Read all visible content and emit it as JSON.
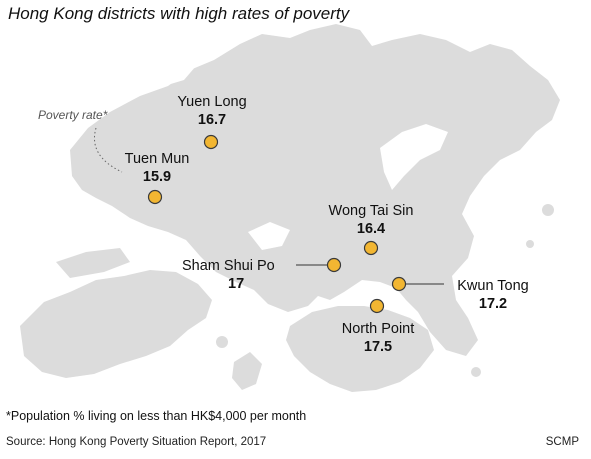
{
  "title": "Hong Kong districts with high rates of poverty",
  "legend_note": "Poverty rate*",
  "districts": [
    {
      "name": "Yuen Long",
      "rate": "16.7"
    },
    {
      "name": "Tuen Mun",
      "rate": "15.9"
    },
    {
      "name": "Wong Tai Sin",
      "rate": "16.4"
    },
    {
      "name": "Sham Shui Po",
      "rate": "17"
    },
    {
      "name": "Kwun Tong",
      "rate": "17.2"
    },
    {
      "name": "North Point",
      "rate": "17.5"
    }
  ],
  "footnote": "*Population % living on less than HK$4,000 per month",
  "source": "Source: Hong Kong Poverty Situation Report, 2017",
  "credit": "SCMP",
  "colors": {
    "land": "#dcdcdc",
    "marker": "#f2b632",
    "background": "#ffffff"
  }
}
